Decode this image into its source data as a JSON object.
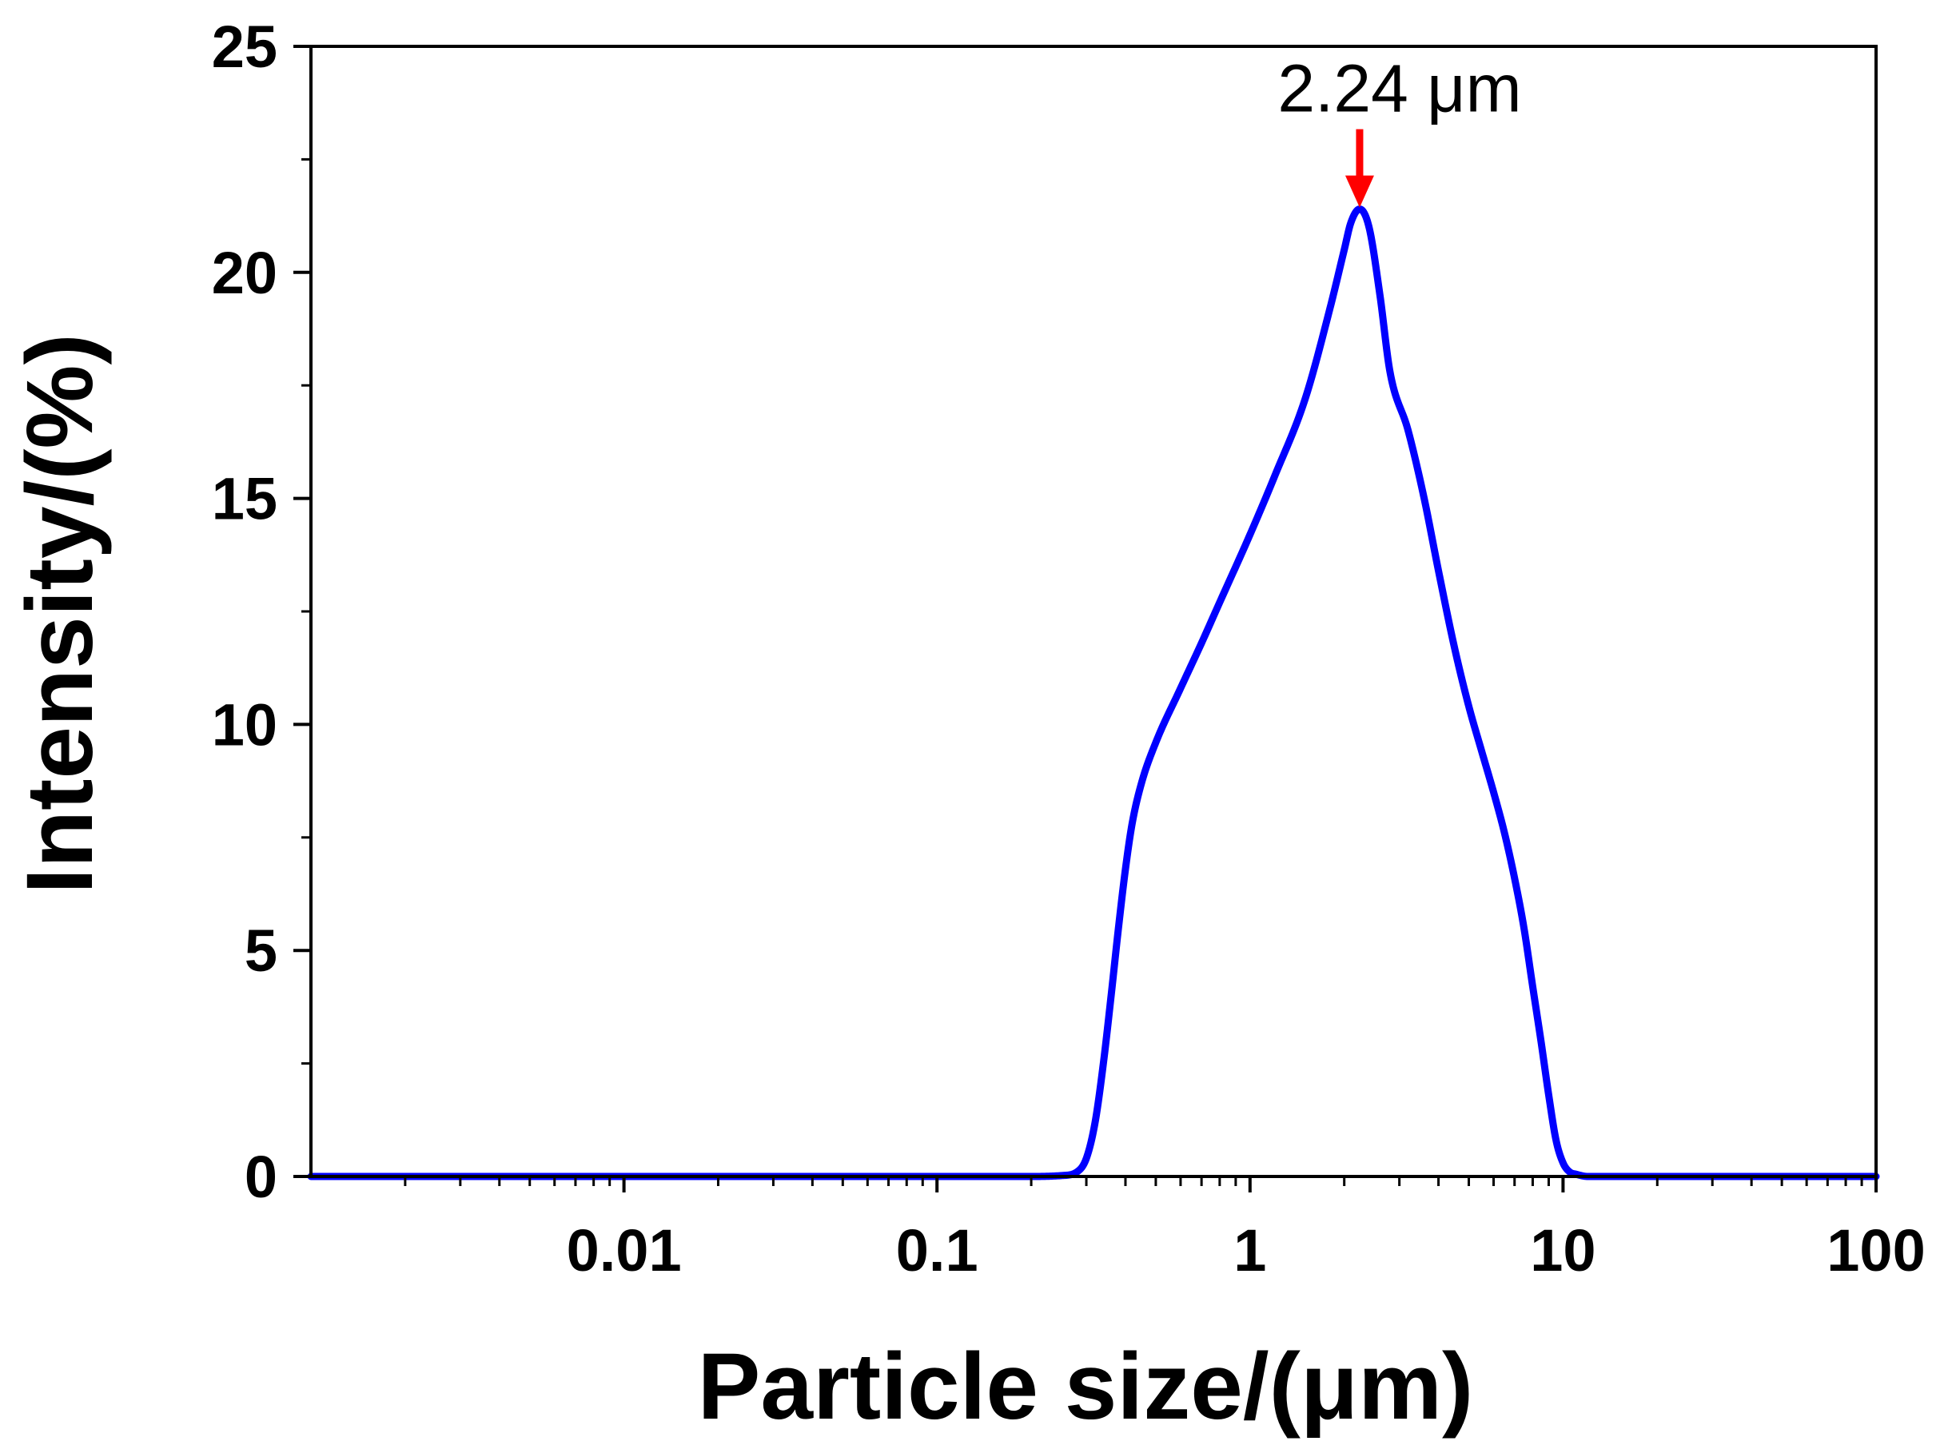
{
  "chart_data": {
    "type": "line",
    "title": "",
    "xlabel": "Particle size/(μm)",
    "ylabel": "Intensity/(%)",
    "xscale": "log",
    "xlim": [
      0.001,
      100
    ],
    "ylim": [
      0,
      25
    ],
    "xticks": [
      0.01,
      0.1,
      1,
      10,
      100
    ],
    "xtick_labels": [
      "0.01",
      "0.1",
      "1",
      "10",
      "100"
    ],
    "yticks": [
      0,
      5,
      10,
      15,
      20,
      25
    ],
    "ytick_labels": [
      "0",
      "5",
      "10",
      "15",
      "20",
      "25"
    ],
    "grid": false,
    "legend": "none",
    "series": [
      {
        "color": "#0000ff",
        "x": [
          0.001,
          0.01,
          0.1,
          0.2,
          0.25,
          0.28,
          0.3,
          0.32,
          0.34,
          0.36,
          0.38,
          0.4,
          0.42,
          0.45,
          0.5,
          0.6,
          0.7,
          0.8,
          1.0,
          1.2,
          1.5,
          1.8,
          2.0,
          2.1,
          2.24,
          2.4,
          2.6,
          2.8,
          3.2,
          3.6,
          4.0,
          4.5,
          5.0,
          5.5,
          6.0,
          6.5,
          7.0,
          7.5,
          8.0,
          8.5,
          9.0,
          9.5,
          10.0,
          10.5,
          11,
          12,
          20,
          50,
          100
        ],
        "y": [
          0,
          0,
          0,
          0,
          0.02,
          0.1,
          0.4,
          1.2,
          2.5,
          4.0,
          5.5,
          6.8,
          7.8,
          8.7,
          9.6,
          10.8,
          11.8,
          12.7,
          14.2,
          15.5,
          17.2,
          19.2,
          20.5,
          21.1,
          21.4,
          21.0,
          19.5,
          17.8,
          16.5,
          15.0,
          13.4,
          11.7,
          10.4,
          9.4,
          8.5,
          7.6,
          6.6,
          5.5,
          4.2,
          3.0,
          1.8,
          0.8,
          0.3,
          0.1,
          0.05,
          0,
          0,
          0,
          0
        ]
      }
    ],
    "annotations": [
      {
        "text": "2.24 μm",
        "x": 2.24,
        "y": 21.4,
        "arrow_color": "#ff0000"
      }
    ]
  }
}
